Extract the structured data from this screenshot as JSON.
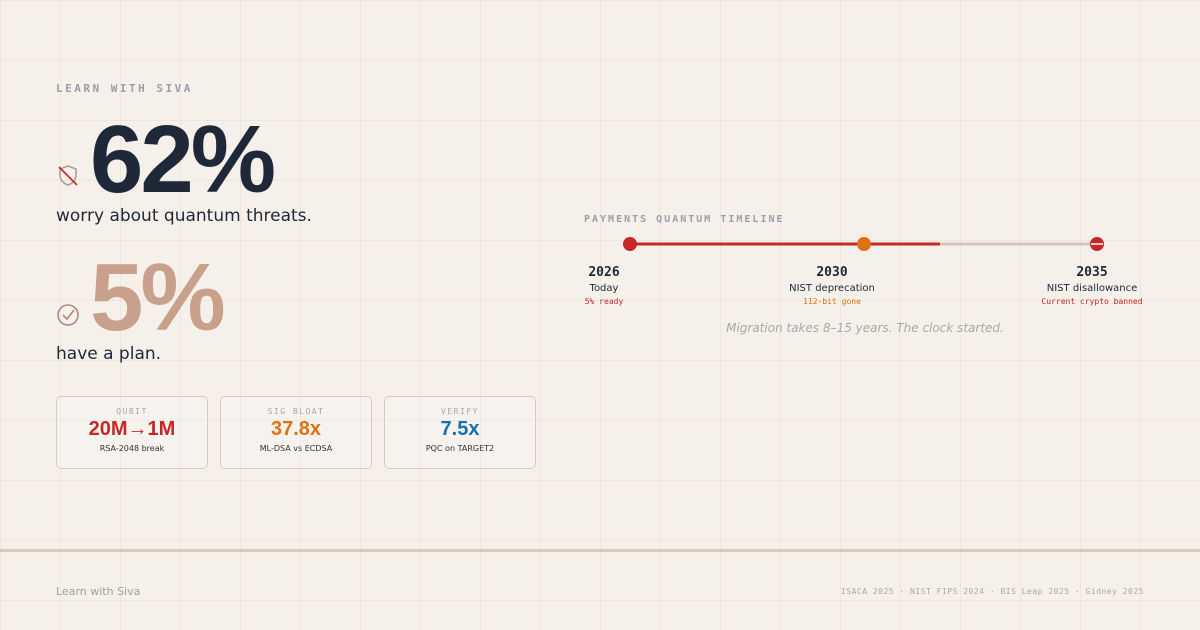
{
  "brand": "LEARN WITH SIVA",
  "stats": [
    {
      "value": "62%",
      "caption": "worry about quantum threats."
    },
    {
      "value": "5%",
      "caption": "have a plan."
    }
  ],
  "cards": [
    {
      "label": "QUBIT",
      "value": "20M→1M",
      "note": "RSA-2048 break"
    },
    {
      "label": "SIG BLOAT",
      "value": "37.8x",
      "note": "ML-DSA vs ECDSA"
    },
    {
      "label": "VERIFY",
      "value": "7.5x",
      "note": "PQC on TARGET2"
    }
  ],
  "timeline": {
    "title": "PAYMENTS QUANTUM TIMELINE",
    "milestones": [
      {
        "year": "2026",
        "label": "Today",
        "note": "5% ready"
      },
      {
        "year": "2030",
        "label": "NIST deprecation",
        "note": "112-bit gone"
      },
      {
        "year": "2035",
        "label": "NIST disallowance",
        "note": "Current crypto banned"
      }
    ],
    "caption": "Migration takes 8–15 years. The clock started."
  },
  "footer": {
    "brand": "Learn with Siva",
    "sources": "ISACA 2025 · NIST FIPS 2024 · BIS Leap 2025 · Gidney 2025"
  }
}
